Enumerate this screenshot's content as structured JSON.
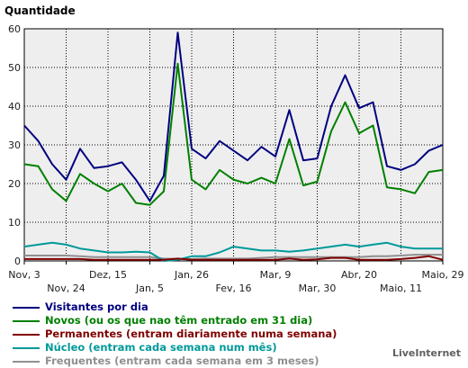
{
  "chart_data": {
    "type": "line",
    "title": "Quantidade",
    "ylim": [
      0,
      60
    ],
    "yticks": [
      0,
      10,
      20,
      30,
      40,
      50,
      60
    ],
    "grid": true,
    "x_labels_row1": [
      "Nov, 3",
      "Dez, 15",
      "Jan, 26",
      "Mar, 9",
      "Abr, 20",
      "Maio, 29"
    ],
    "x_labels_row2": [
      "Nov, 24",
      "Jan, 5",
      "Fev, 16",
      "Mar, 30",
      "Maio, 11"
    ],
    "series": [
      {
        "name": "Visitantes por dia",
        "color": "#000080",
        "values": [
          35,
          31,
          25,
          21,
          29,
          24,
          24.5,
          25.5,
          21,
          15.5,
          22,
          59,
          29,
          26.5,
          31,
          28.5,
          26,
          29.5,
          27,
          39,
          26,
          26.5,
          40,
          48,
          39.5,
          41,
          24.5,
          23.5,
          25,
          28.5,
          30
        ]
      },
      {
        "name": "Novos (ou os que nao têm entrado em 31 dia)",
        "color": "#008000",
        "values": [
          25,
          24.5,
          18.5,
          15.5,
          22.5,
          20,
          18,
          20,
          15,
          14.5,
          18,
          51,
          21,
          18.5,
          23.5,
          21,
          20,
          21.5,
          20,
          31.5,
          19.5,
          20.5,
          33.5,
          41,
          33,
          35,
          19,
          18.5,
          17.5,
          23,
          23.5
        ]
      },
      {
        "name": "Permanentes (entram diariamente numa semana)",
        "color": "#800000",
        "values": [
          0.5,
          0.5,
          0.5,
          0.5,
          0.5,
          0.3,
          0.3,
          0.3,
          0.3,
          0.3,
          0.3,
          0.6,
          0.3,
          0.3,
          0.3,
          0.3,
          0.3,
          0.3,
          0.3,
          0.6,
          0.3,
          0.4,
          0.8,
          0.8,
          0.3,
          0.3,
          0.3,
          0.5,
          0.8,
          1.2,
          0.3
        ]
      },
      {
        "name": "Núcleo (entram cada semana num mês)",
        "color": "#009999",
        "values": [
          3.7,
          4.2,
          4.7,
          4.2,
          3.2,
          2.7,
          2.2,
          2.2,
          2.4,
          2.2,
          0,
          0.3,
          1.2,
          1.2,
          2.2,
          3.7,
          3.2,
          2.7,
          2.7,
          2.4,
          2.7,
          3.2,
          3.7,
          4.2,
          3.7,
          4.2,
          4.7,
          3.7,
          3.2,
          3.2,
          3.2
        ]
      },
      {
        "name": "Frequentes (entram cada semana em 3 meses)",
        "color": "#909090",
        "values": [
          1.4,
          1.4,
          1.4,
          1.4,
          1.2,
          1.0,
          1.0,
          1.0,
          1.0,
          1.0,
          0.6,
          0.5,
          0.5,
          0.6,
          0.6,
          0.6,
          0.6,
          0.8,
          1.0,
          1.0,
          1.0,
          1.0,
          1.0,
          1.0,
          1.0,
          1.2,
          1.2,
          1.4,
          1.6,
          1.6,
          1.6
        ]
      }
    ]
  },
  "credit": "LiveInternet"
}
